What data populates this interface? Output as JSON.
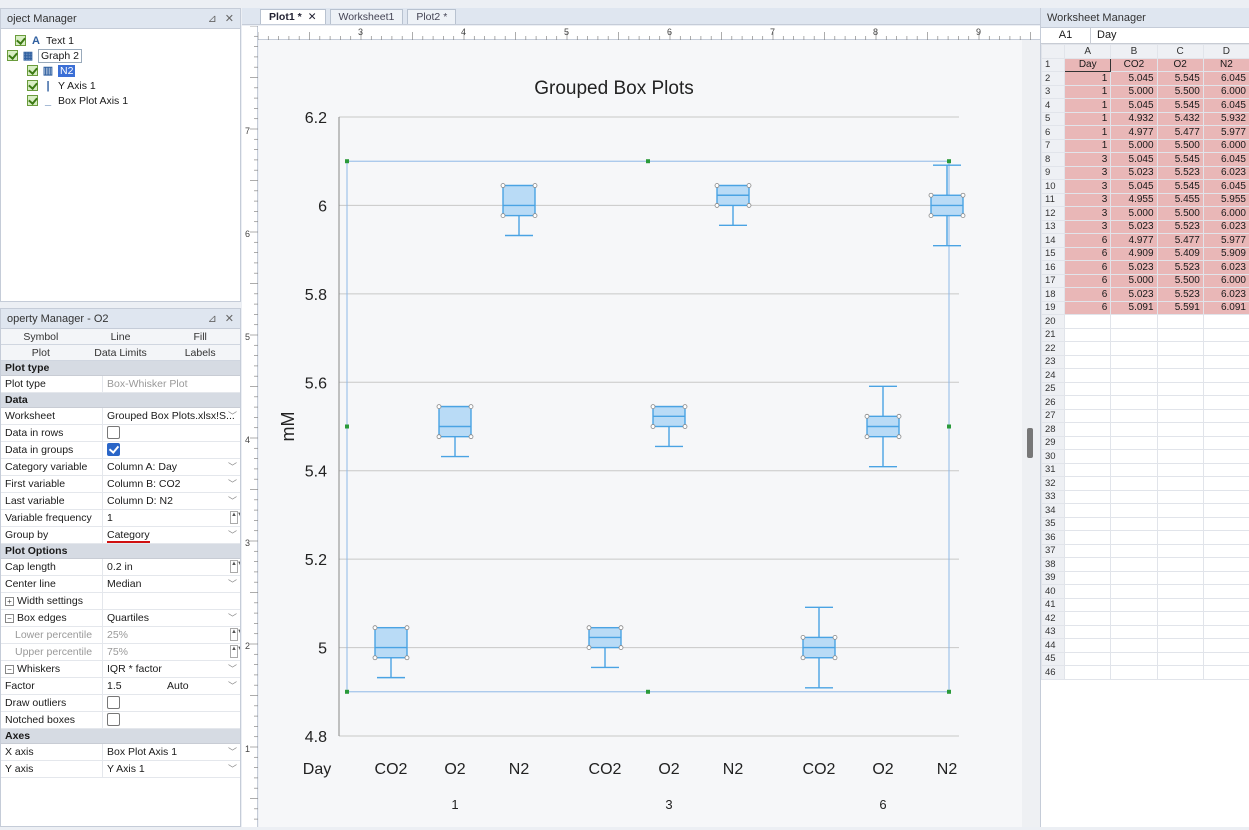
{
  "project_manager": {
    "title": "oject Manager",
    "tree": [
      {
        "label": "Text 1",
        "glyph": "A",
        "indent": 14
      },
      {
        "label": "Graph 2",
        "glyph": "▦",
        "indent": 6
      },
      {
        "label": "N2",
        "glyph": "▥",
        "indent": 26
      },
      {
        "label": "Y Axis 1",
        "glyph": "|",
        "indent": 26
      },
      {
        "label": "Box Plot Axis 1",
        "glyph": "_",
        "indent": 26
      }
    ]
  },
  "property_manager": {
    "title": "operty Manager - O2",
    "tabs_row1": [
      "Symbol",
      "Line",
      "Fill"
    ],
    "tabs_row2": [
      "Plot",
      "Data Limits",
      "Labels"
    ],
    "groups": {
      "plot_type": "Plot type",
      "data": "Data",
      "plot_options": "Plot Options",
      "axes": "Axes"
    },
    "plot_type": {
      "key": "Plot type",
      "value": "Box-Whisker Plot"
    },
    "data_rows": [
      {
        "key": "Worksheet",
        "value": "Grouped Box Plots.xlsx!S..."
      },
      {
        "key": "Data in rows",
        "value": ""
      },
      {
        "key": "Data in groups",
        "value": ""
      },
      {
        "key": "Category variable",
        "value": "Column A: Day"
      },
      {
        "key": "First variable",
        "value": "Column B: CO2"
      },
      {
        "key": "Last variable",
        "value": "Column D: N2"
      },
      {
        "key": "Variable frequency",
        "value": "1"
      },
      {
        "key": "Group by",
        "value": "Category"
      }
    ],
    "options_rows": [
      {
        "key": "Cap length",
        "value": "0.2 in"
      },
      {
        "key": "Center line",
        "value": "Median"
      },
      {
        "key": "Width settings",
        "value": ""
      },
      {
        "key": "Box edges",
        "value": "Quartiles"
      },
      {
        "key": "Lower percentile",
        "value": "25%"
      },
      {
        "key": "Upper percentile",
        "value": "75%"
      },
      {
        "key": "Whiskers",
        "value": "IQR * factor"
      },
      {
        "key": "Factor",
        "value": "1.5",
        "extra": "Auto"
      },
      {
        "key": "Draw outliers",
        "value": ""
      },
      {
        "key": "Notched boxes",
        "value": ""
      }
    ],
    "axes_rows": [
      {
        "key": "X axis",
        "value": "Box Plot Axis 1"
      },
      {
        "key": "Y axis",
        "value": "Y Axis 1"
      }
    ]
  },
  "document_tabs": [
    "Plot1 *",
    "Worksheet1",
    "Plot2 *"
  ],
  "ruler_labels": [
    "3",
    "4",
    "5",
    "6",
    "7",
    "8",
    "9"
  ],
  "vruler_labels": [
    "7",
    "6",
    "5",
    "4",
    "3",
    "2",
    "1"
  ],
  "chart_data": {
    "type": "box",
    "title": "Grouped Box Plots",
    "ylabel": "mM",
    "xlabel": "Day",
    "ylim": [
      4.8,
      6.2
    ],
    "yticks": [
      4.8,
      5,
      5.2,
      5.4,
      5.6,
      5.8,
      6,
      6.2
    ],
    "ytick_labels": [
      "4.8",
      "5",
      "5.2",
      "5.4",
      "5.6",
      "5.8",
      "6",
      "6.2"
    ],
    "groups": [
      "1",
      "3",
      "6"
    ],
    "variables": [
      "CO2",
      "O2",
      "N2"
    ],
    "boxes": [
      {
        "group": "1",
        "variable": "CO2",
        "whisker_low": 4.932,
        "q1": 4.977,
        "median": 5.0,
        "q3": 5.045,
        "whisker_high": 5.045
      },
      {
        "group": "1",
        "variable": "O2",
        "whisker_low": 5.432,
        "q1": 5.477,
        "median": 5.5,
        "q3": 5.545,
        "whisker_high": 5.545
      },
      {
        "group": "1",
        "variable": "N2",
        "whisker_low": 5.932,
        "q1": 5.977,
        "median": 6.0,
        "q3": 6.045,
        "whisker_high": 6.045
      },
      {
        "group": "3",
        "variable": "CO2",
        "whisker_low": 4.955,
        "q1": 5.0,
        "median": 5.023,
        "q3": 5.045,
        "whisker_high": 5.045
      },
      {
        "group": "3",
        "variable": "O2",
        "whisker_low": 5.455,
        "q1": 5.5,
        "median": 5.523,
        "q3": 5.545,
        "whisker_high": 5.545
      },
      {
        "group": "3",
        "variable": "N2",
        "whisker_low": 5.955,
        "q1": 6.0,
        "median": 6.023,
        "q3": 6.045,
        "whisker_high": 6.045
      },
      {
        "group": "6",
        "variable": "CO2",
        "whisker_low": 4.909,
        "q1": 4.977,
        "median": 5.0,
        "q3": 5.023,
        "whisker_high": 5.091
      },
      {
        "group": "6",
        "variable": "O2",
        "whisker_low": 5.409,
        "q1": 5.477,
        "median": 5.5,
        "q3": 5.523,
        "whisker_high": 5.591
      },
      {
        "group": "6",
        "variable": "N2",
        "whisker_low": 5.909,
        "q1": 5.977,
        "median": 6.0,
        "q3": 6.023,
        "whisker_high": 6.091
      }
    ],
    "grid": true,
    "colors": {
      "box_fill": "#b9dbf6",
      "box_stroke": "#4aa3e3",
      "grid": "#c8c8c8",
      "selection": "#2a9a3a"
    }
  },
  "worksheet_manager": {
    "title": "Worksheet Manager",
    "cell_ref": "A1",
    "cell_value": "Day",
    "columns": [
      "A",
      "B",
      "C",
      "D"
    ],
    "header_row": [
      "Day",
      "CO2",
      "O2",
      "N2"
    ],
    "rows": [
      [
        "1",
        "5.045",
        "5.545",
        "6.045"
      ],
      [
        "1",
        "5.000",
        "5.500",
        "6.000"
      ],
      [
        "1",
        "5.045",
        "5.545",
        "6.045"
      ],
      [
        "1",
        "4.932",
        "5.432",
        "5.932"
      ],
      [
        "1",
        "4.977",
        "5.477",
        "5.977"
      ],
      [
        "1",
        "5.000",
        "5.500",
        "6.000"
      ],
      [
        "3",
        "5.045",
        "5.545",
        "6.045"
      ],
      [
        "3",
        "5.023",
        "5.523",
        "6.023"
      ],
      [
        "3",
        "5.045",
        "5.545",
        "6.045"
      ],
      [
        "3",
        "4.955",
        "5.455",
        "5.955"
      ],
      [
        "3",
        "5.000",
        "5.500",
        "6.000"
      ],
      [
        "3",
        "5.023",
        "5.523",
        "6.023"
      ],
      [
        "6",
        "4.977",
        "5.477",
        "5.977"
      ],
      [
        "6",
        "4.909",
        "5.409",
        "5.909"
      ],
      [
        "6",
        "5.023",
        "5.523",
        "6.023"
      ],
      [
        "6",
        "5.000",
        "5.500",
        "6.000"
      ],
      [
        "6",
        "5.023",
        "5.523",
        "6.023"
      ],
      [
        "6",
        "5.091",
        "5.591",
        "6.091"
      ]
    ],
    "empty_row_count": 27
  }
}
